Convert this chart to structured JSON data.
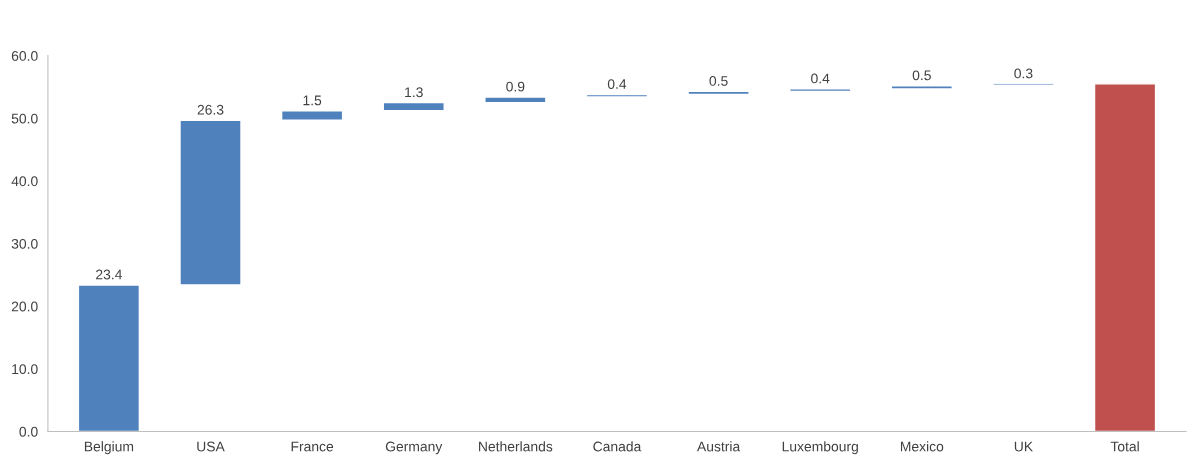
{
  "chart_data": {
    "type": "bar",
    "categories": [
      "Belgium",
      "USA",
      "France",
      "Germany",
      "Netherlands",
      "Canada",
      "Austria",
      "Luxembourg",
      "Mexico",
      "UK",
      "Total"
    ],
    "values": [
      23.4,
      26.3,
      1.5,
      1.3,
      0.9,
      0.4,
      0.5,
      0.4,
      0.5,
      0.3,
      55.5
    ],
    "base": [
      0,
      23.4,
      49.7,
      51.2,
      52.5,
      53.4,
      53.8,
      54.3,
      54.7,
      55.2,
      0
    ],
    "colors": [
      "#4f81bd",
      "#4f81bd",
      "#4f81bd",
      "#4f81bd",
      "#4f81bd",
      "#4f81bd",
      "#4f81bd",
      "#4f81bd",
      "#4f81bd",
      "#4f81bd",
      "#c0504d"
    ],
    "value_labels": [
      "23.4",
      "26.3",
      "1.5",
      "1.3",
      "0.9",
      "0.4",
      "0.5",
      "0.4",
      "0.5",
      "0.3",
      null
    ],
    "ylim": [
      0,
      60
    ],
    "yticks": [
      {
        "value": 0,
        "label": "0.0"
      },
      {
        "value": 10,
        "label": "10.0"
      },
      {
        "value": 20,
        "label": "20.0"
      },
      {
        "value": 30,
        "label": "30.0"
      },
      {
        "value": 40,
        "label": "40.0"
      },
      {
        "value": 50,
        "label": "50.0"
      },
      {
        "value": 60,
        "label": "60.0"
      }
    ],
    "grid": false,
    "legend": false
  }
}
